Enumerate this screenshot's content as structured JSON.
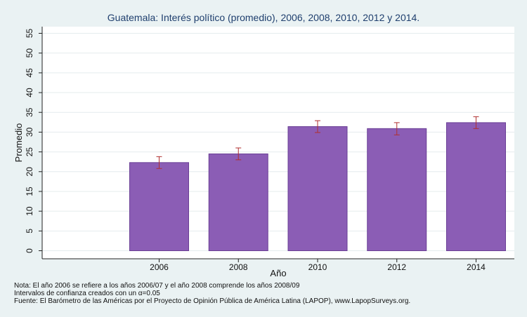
{
  "chart_data": {
    "type": "bar",
    "title": "Guatemala: Interés político (promedio), 2006, 2008, 2010, 2012 y 2014.",
    "xlabel": "Año",
    "ylabel": "Promedio",
    "ylim": [
      0,
      55
    ],
    "yticks": [
      0,
      5,
      10,
      15,
      20,
      25,
      30,
      35,
      40,
      45,
      50,
      55
    ],
    "grid": true,
    "categories": [
      "2006",
      "2008",
      "2010",
      "2012",
      "2014"
    ],
    "values": [
      22.3,
      24.5,
      31.4,
      30.9,
      32.4
    ],
    "ci_lower": [
      20.8,
      23.0,
      29.9,
      29.3,
      30.9
    ],
    "ci_upper": [
      23.8,
      26.0,
      32.9,
      32.4,
      33.9
    ],
    "colors": {
      "bar": "#8b5db5",
      "bar_edge": "#6a3f95",
      "error": "#b03030",
      "plot_bg": "#ffffff",
      "page_bg": "#eaf2f3",
      "title": "#1f3f6e"
    }
  },
  "notes": [
    "Nota: El año 2006 se refiere a los años 2006/07 y el año 2008 comprende los años 2008/09",
    "Intervalos de confianza creados con un α=0.05",
    "Fuente: El Barómetro de las Américas por el Proyecto de Opinión Pública de América Latina (LAPOP), www.LapopSurveys.org."
  ]
}
